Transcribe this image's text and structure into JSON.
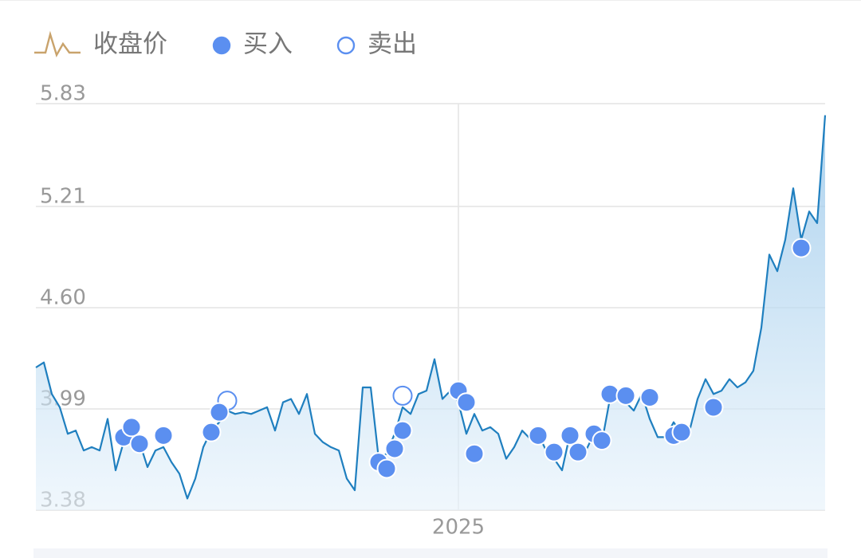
{
  "chart_data": {
    "type": "line",
    "categories": [
      null,
      null,
      null,
      null,
      null,
      null,
      null,
      null,
      null,
      null,
      null,
      null,
      null,
      null,
      null,
      null,
      null,
      null,
      null,
      null,
      null,
      null,
      null,
      null,
      null,
      null,
      null,
      null,
      null,
      null,
      null,
      null,
      null,
      null,
      null,
      null,
      null,
      null,
      null,
      null,
      null,
      null,
      null,
      null,
      null,
      null,
      null,
      null,
      null,
      null,
      null,
      null,
      null,
      "2025",
      null,
      null,
      null,
      null,
      null,
      null,
      null,
      null,
      null,
      null,
      null,
      null,
      null,
      null,
      null,
      null,
      null,
      null,
      null,
      null,
      null,
      null,
      null,
      null,
      null,
      null,
      null,
      null,
      null,
      null,
      null,
      null,
      null,
      null,
      null,
      null,
      null,
      null,
      null,
      null,
      null,
      null,
      null,
      null,
      null,
      null
    ],
    "series": [
      {
        "name": "收盘价",
        "type": "line",
        "color": "#1f7fbf",
        "values": [
          4.24,
          4.27,
          4.08,
          4.0,
          3.84,
          3.86,
          3.74,
          3.76,
          3.74,
          3.93,
          3.62,
          3.79,
          3.84,
          3.79,
          3.64,
          3.74,
          3.76,
          3.67,
          3.6,
          3.45,
          3.57,
          3.76,
          3.86,
          3.91,
          3.98,
          3.96,
          3.97,
          3.96,
          3.98,
          4.0,
          3.86,
          4.03,
          4.05,
          3.96,
          4.08,
          3.84,
          3.79,
          3.76,
          3.74,
          3.57,
          3.5,
          4.12,
          4.12,
          3.69,
          3.72,
          3.84,
          4.0,
          3.96,
          4.08,
          4.1,
          4.29,
          4.05,
          4.1,
          4.03,
          3.84,
          3.96,
          3.86,
          3.88,
          3.84,
          3.69,
          3.76,
          3.86,
          3.81,
          3.84,
          3.74,
          3.69,
          3.62,
          3.84,
          3.76,
          3.74,
          3.84,
          3.79,
          4.05,
          4.08,
          4.03,
          3.98,
          4.08,
          3.93,
          3.82,
          3.82,
          3.91,
          3.84,
          3.86,
          4.05,
          4.17,
          4.08,
          4.1,
          4.17,
          4.12,
          4.15,
          4.22,
          4.48,
          4.92,
          4.82,
          5.01,
          5.32,
          5.01,
          5.18,
          5.11,
          5.76
        ]
      },
      {
        "name": "买入",
        "type": "scatter",
        "color": "#5b8ff0",
        "filled": true,
        "values": [
          null,
          null,
          null,
          null,
          null,
          null,
          null,
          null,
          null,
          null,
          null,
          3.82,
          3.88,
          3.78,
          null,
          null,
          3.83,
          null,
          null,
          null,
          null,
          null,
          3.85,
          3.97,
          null,
          null,
          null,
          null,
          null,
          null,
          null,
          null,
          null,
          null,
          null,
          null,
          null,
          null,
          null,
          null,
          null,
          null,
          null,
          3.67,
          3.63,
          3.75,
          3.86,
          null,
          null,
          null,
          null,
          null,
          null,
          4.1,
          4.03,
          3.72,
          null,
          null,
          null,
          null,
          null,
          null,
          null,
          3.83,
          null,
          3.73,
          null,
          3.83,
          3.73,
          null,
          3.84,
          3.8,
          4.08,
          null,
          4.07,
          null,
          null,
          4.06,
          null,
          null,
          3.83,
          3.85,
          null,
          null,
          null,
          4.0,
          null,
          null,
          null,
          null,
          null,
          null,
          null,
          null,
          null,
          null,
          4.96,
          null,
          null,
          null
        ]
      },
      {
        "name": "卖出",
        "type": "scatter",
        "color": "#5b8ff0",
        "filled": false,
        "values": [
          null,
          null,
          null,
          null,
          null,
          null,
          null,
          null,
          null,
          null,
          null,
          null,
          null,
          null,
          null,
          null,
          null,
          null,
          null,
          null,
          null,
          null,
          null,
          null,
          4.04,
          null,
          null,
          null,
          null,
          null,
          null,
          null,
          null,
          null,
          null,
          null,
          null,
          null,
          null,
          null,
          null,
          null,
          null,
          null,
          null,
          null,
          4.07,
          null,
          null,
          null,
          null,
          null,
          null,
          null,
          null,
          null,
          null,
          null,
          null,
          null,
          null,
          null,
          null,
          null,
          null,
          null,
          null,
          null,
          null,
          null,
          null,
          null,
          null,
          null,
          null,
          null,
          null,
          null,
          null,
          null,
          null,
          null,
          null,
          null,
          null,
          null,
          null,
          null,
          null,
          null,
          null,
          null,
          null,
          null,
          null,
          null,
          null,
          null,
          null,
          null
        ]
      }
    ],
    "ylim": [
      3.38,
      5.83
    ],
    "yticks": [
      {
        "value": 3.38,
        "label": "3.38"
      },
      {
        "value": 3.99,
        "label": "3.99"
      },
      {
        "value": 4.6,
        "label": "4.60"
      },
      {
        "value": 5.21,
        "label": "5.21"
      },
      {
        "value": 5.83,
        "label": "5.83"
      }
    ],
    "grid": true
  }
}
